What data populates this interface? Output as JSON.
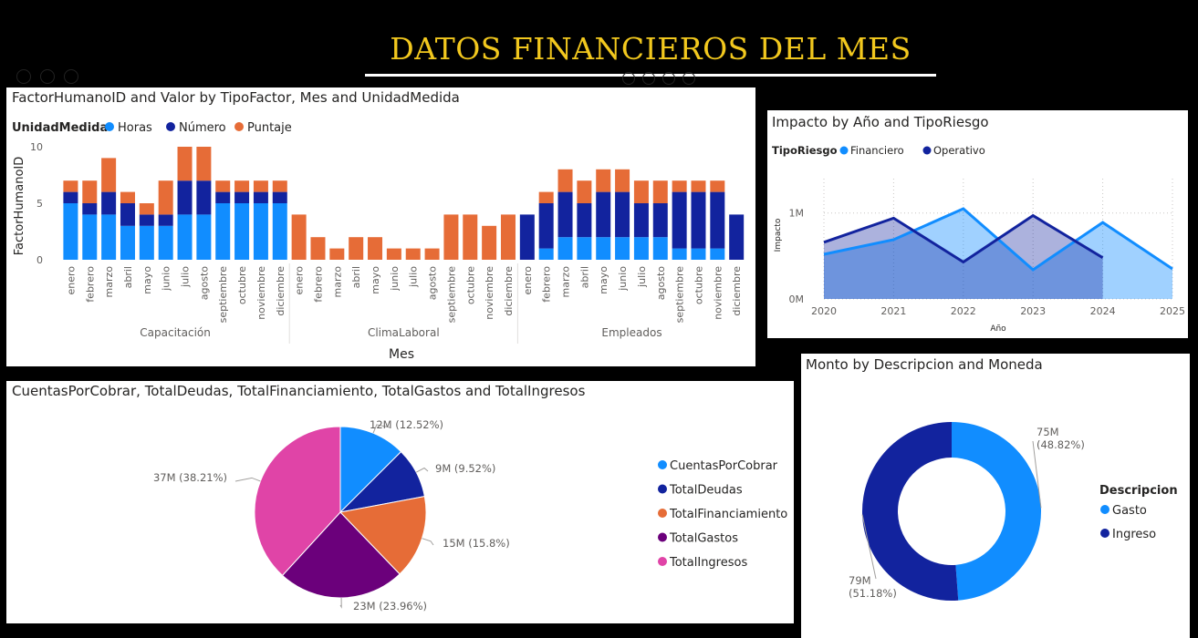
{
  "header": {
    "title": "DATOS FINANCIEROS DEL MES"
  },
  "colors": {
    "horas": "#118dff",
    "numero": "#12239e",
    "puntaje": "#e66c37",
    "financiero": "#118dff",
    "operativo": "#12239e",
    "ingresos": "#e044a7",
    "gastos": "#6b007b"
  },
  "bar_panel": {
    "title": "FactorHumanoID and Valor by TipoFactor, Mes and UnidadMedida",
    "legend_title": "UnidadMedida",
    "chart_data": {
      "type": "bar",
      "title": "FactorHumanoID and Valor by TipoFactor, Mes and UnidadMedida",
      "xlabel": "Mes",
      "ylabel": "FactorHumanoID",
      "ylim": [
        0,
        10
      ],
      "yticks": [
        "0",
        "5",
        "10"
      ],
      "months": [
        "enero",
        "febrero",
        "marzo",
        "abril",
        "mayo",
        "junio",
        "julio",
        "agosto",
        "septiembre",
        "octubre",
        "noviembre",
        "diciembre"
      ],
      "groups": [
        "Capacitación",
        "ClimaLaboral",
        "Empleados"
      ],
      "series": [
        {
          "name": "Horas",
          "values": [
            [
              5,
              4,
              4,
              3,
              3,
              3,
              4,
              4,
              5,
              5,
              5,
              5
            ],
            [
              0,
              0,
              0,
              0,
              0,
              0,
              0,
              0,
              0,
              0,
              0,
              0
            ],
            [
              0,
              1,
              2,
              2,
              2,
              2,
              2,
              2,
              1,
              1,
              1,
              0
            ]
          ]
        },
        {
          "name": "Número",
          "values": [
            [
              1,
              1,
              2,
              2,
              1,
              1,
              3,
              3,
              1,
              1,
              1,
              1
            ],
            [
              0,
              0,
              0,
              0,
              0,
              0,
              0,
              0,
              0,
              0,
              0,
              0
            ],
            [
              4,
              4,
              4,
              3,
              4,
              4,
              3,
              3,
              5,
              5,
              5,
              4
            ]
          ]
        },
        {
          "name": "Puntaje",
          "values": [
            [
              1,
              2,
              3,
              1,
              1,
              3,
              3,
              3,
              1,
              1,
              1,
              1
            ],
            [
              4,
              2,
              1,
              2,
              2,
              1,
              1,
              1,
              4,
              4,
              3,
              4
            ],
            [
              0,
              1,
              2,
              2,
              2,
              2,
              2,
              2,
              1,
              1,
              1,
              0
            ]
          ]
        }
      ]
    }
  },
  "area_panel": {
    "title": "Impacto by Año and TipoRiesgo",
    "legend_title": "TipoRiesgo",
    "chart_data": {
      "type": "area",
      "title": "Impacto by Año and TipoRiesgo",
      "xlabel": "Año",
      "ylabel": "Impacto",
      "x": [
        "2020",
        "2021",
        "2022",
        "2023",
        "2024",
        "2025"
      ],
      "ylim": [
        0,
        1400000
      ],
      "yticks": [
        {
          "v": 0,
          "label": "0M"
        },
        {
          "v": 1000000,
          "label": "1M"
        }
      ],
      "series": [
        {
          "name": "Financiero",
          "values": [
            520000,
            690000,
            1050000,
            340000,
            890000,
            350000
          ]
        },
        {
          "name": "Operativo",
          "values": [
            660000,
            940000,
            430000,
            970000,
            480000,
            null
          ]
        }
      ]
    }
  },
  "pie_panel": {
    "title": "CuentasPorCobrar, TotalDeudas, TotalFinanciamiento, TotalGastos and TotalIngresos",
    "chart_data": {
      "type": "pie",
      "title": "CuentasPorCobrar, TotalDeudas, TotalFinanciamiento, TotalGastos and TotalIngresos",
      "labels": [
        "CuentasPorCobrar",
        "TotalDeudas",
        "TotalFinanciamiento",
        "TotalGastos",
        "TotalIngresos"
      ],
      "values": [
        12.52,
        9.52,
        15.8,
        23.96,
        38.21
      ],
      "data_labels": [
        "12M (12.52%)",
        "9M (9.52%)",
        "15M (15.8%)",
        "23M (23.96%)",
        "37M (38.21%)"
      ],
      "colors": [
        "#118dff",
        "#12239e",
        "#e66c37",
        "#6b007b",
        "#e044a7"
      ]
    }
  },
  "donut_panel": {
    "title": "Monto by Descripcion and Moneda",
    "legend_title": "Descripcion",
    "chart_data": {
      "type": "pie",
      "title": "Monto by Descripcion and Moneda",
      "labels": [
        "Gasto",
        "Ingreso"
      ],
      "values": [
        48.82,
        51.18
      ],
      "data_labels": [
        [
          "75M",
          "(48.82%)"
        ],
        [
          "79M",
          "(51.18%)"
        ]
      ],
      "colors": [
        "#118dff",
        "#12239e"
      ]
    }
  }
}
